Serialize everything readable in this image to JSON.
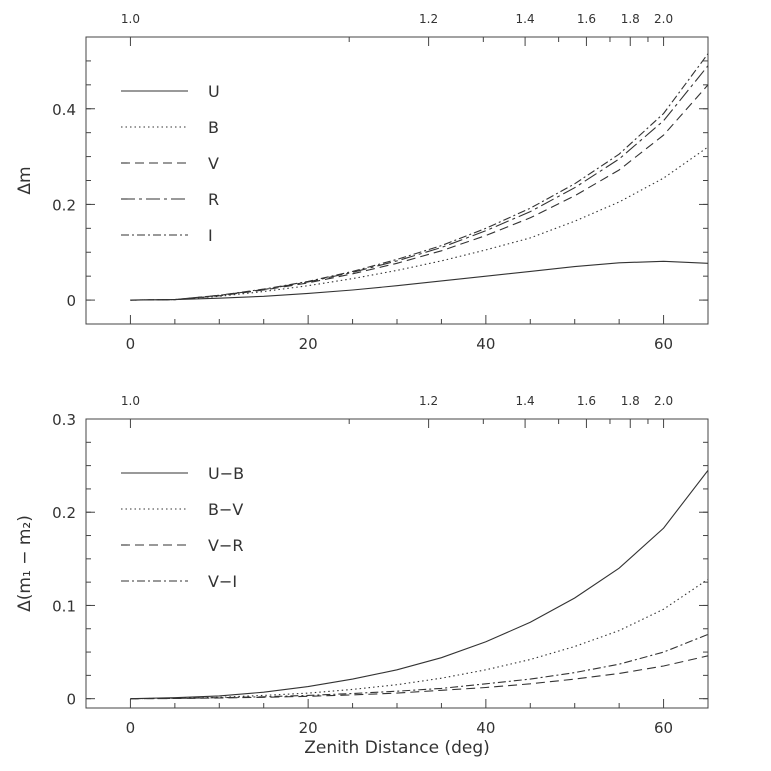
{
  "chart_data": [
    {
      "type": "line",
      "xlabel": "",
      "ylabel": "Δm",
      "xlim": [
        -5,
        65
      ],
      "ylim": [
        -0.05,
        0.55
      ],
      "x_ticks": [
        0,
        20,
        40,
        60
      ],
      "y_ticks": [
        0,
        0.2,
        0.4
      ],
      "y_tick_labels": [
        "0",
        "0.2",
        "0.4"
      ],
      "top_axis": {
        "label_values": [
          1.0,
          1.2,
          1.4,
          1.6,
          1.8,
          2.0
        ],
        "labels": [
          "1.0",
          "1.2",
          "1.4",
          "1.6",
          "1.8",
          "2.0"
        ],
        "minor_values": [
          1.1,
          1.3,
          1.5,
          1.7,
          1.9
        ]
      },
      "legend_position": "top-left",
      "series": [
        {
          "name": "U",
          "dash": "solid",
          "x": [
            0,
            5,
            10,
            15,
            20,
            25,
            30,
            35,
            40,
            45,
            50,
            55,
            60,
            65
          ],
          "y": [
            0,
            0.001,
            0.004,
            0.008,
            0.014,
            0.021,
            0.03,
            0.04,
            0.05,
            0.06,
            0.07,
            0.078,
            0.081,
            0.077
          ]
        },
        {
          "name": "B",
          "dash": "dotted",
          "x": [
            0,
            5,
            10,
            15,
            20,
            25,
            30,
            35,
            40,
            45,
            50,
            55,
            60,
            65
          ],
          "y": [
            0,
            0.001,
            0.008,
            0.018,
            0.03,
            0.045,
            0.062,
            0.082,
            0.105,
            0.13,
            0.165,
            0.205,
            0.255,
            0.32
          ]
        },
        {
          "name": "V",
          "dash": "dashed",
          "x": [
            0,
            5,
            10,
            15,
            20,
            25,
            30,
            35,
            40,
            45,
            50,
            55,
            60,
            65
          ],
          "y": [
            0,
            0.001,
            0.009,
            0.021,
            0.036,
            0.055,
            0.077,
            0.103,
            0.135,
            0.172,
            0.218,
            0.272,
            0.345,
            0.45
          ]
        },
        {
          "name": "R",
          "dash": "long-dash-dot",
          "x": [
            0,
            5,
            10,
            15,
            20,
            25,
            30,
            35,
            40,
            45,
            50,
            55,
            60,
            65
          ],
          "y": [
            0,
            0.001,
            0.01,
            0.022,
            0.038,
            0.058,
            0.082,
            0.11,
            0.145,
            0.185,
            0.235,
            0.295,
            0.375,
            0.49
          ]
        },
        {
          "name": "I",
          "dash": "dash-dot",
          "x": [
            0,
            5,
            10,
            15,
            20,
            25,
            30,
            35,
            40,
            45,
            50,
            55,
            60,
            65
          ],
          "y": [
            0,
            0.001,
            0.01,
            0.023,
            0.039,
            0.06,
            0.085,
            0.114,
            0.15,
            0.192,
            0.243,
            0.305,
            0.39,
            0.515
          ]
        }
      ]
    },
    {
      "type": "line",
      "xlabel": "Zenith Distance (deg)",
      "ylabel": "Δ(m₁ − m₂)",
      "xlim": [
        -5,
        65
      ],
      "ylim": [
        -0.01,
        0.3
      ],
      "x_ticks": [
        0,
        20,
        40,
        60
      ],
      "y_ticks": [
        0,
        0.1,
        0.2,
        0.3
      ],
      "y_tick_labels": [
        "0",
        "0.1",
        "0.2",
        "0.3"
      ],
      "top_axis": {
        "label_values": [
          1.0,
          1.2,
          1.4,
          1.6,
          1.8,
          2.0
        ],
        "labels": [
          "1.0",
          "1.2",
          "1.4",
          "1.6",
          "1.8",
          "2.0"
        ],
        "minor_values": [
          1.1,
          1.3,
          1.5,
          1.7,
          1.9
        ]
      },
      "legend_position": "top-left",
      "series": [
        {
          "name": "U−B",
          "dash": "solid",
          "x": [
            0,
            5,
            10,
            15,
            20,
            25,
            30,
            35,
            40,
            45,
            50,
            55,
            60,
            65
          ],
          "y": [
            0,
            0.001,
            0.003,
            0.007,
            0.013,
            0.021,
            0.031,
            0.044,
            0.061,
            0.082,
            0.108,
            0.14,
            0.183,
            0.245
          ]
        },
        {
          "name": "B−V",
          "dash": "dotted",
          "x": [
            0,
            5,
            10,
            15,
            20,
            25,
            30,
            35,
            40,
            45,
            50,
            55,
            60,
            65
          ],
          "y": [
            0,
            0.0005,
            0.0015,
            0.0035,
            0.006,
            0.01,
            0.015,
            0.022,
            0.031,
            0.042,
            0.056,
            0.073,
            0.096,
            0.128
          ]
        },
        {
          "name": "V−R",
          "dash": "dashed",
          "x": [
            0,
            5,
            10,
            15,
            20,
            25,
            30,
            35,
            40,
            45,
            50,
            55,
            60,
            65
          ],
          "y": [
            0,
            0.0002,
            0.0007,
            0.0015,
            0.0025,
            0.004,
            0.006,
            0.009,
            0.012,
            0.016,
            0.021,
            0.027,
            0.035,
            0.046
          ]
        },
        {
          "name": "V−I",
          "dash": "dash-dot",
          "x": [
            0,
            5,
            10,
            15,
            20,
            25,
            30,
            35,
            40,
            45,
            50,
            55,
            60,
            65
          ],
          "y": [
            0,
            0.0003,
            0.001,
            0.002,
            0.0035,
            0.0055,
            0.008,
            0.011,
            0.016,
            0.021,
            0.028,
            0.037,
            0.05,
            0.069
          ]
        }
      ]
    }
  ]
}
